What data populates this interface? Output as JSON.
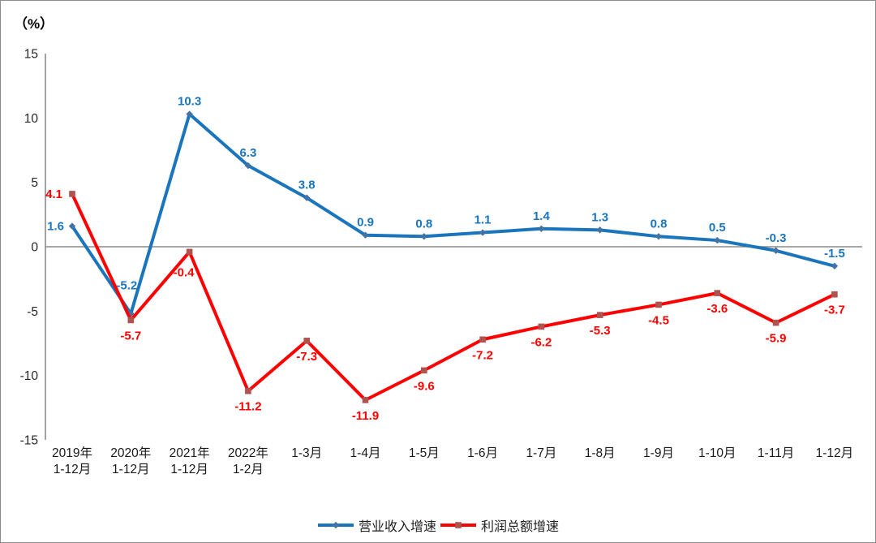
{
  "chart_data": {
    "type": "line",
    "unit_label": "（%）",
    "categories": [
      [
        "2019年",
        "1-12月"
      ],
      [
        "2020年",
        "1-12月"
      ],
      [
        "2021年",
        "1-12月"
      ],
      [
        "2022年",
        "1-2月"
      ],
      [
        "1-3月"
      ],
      [
        "1-4月"
      ],
      [
        "1-5月"
      ],
      [
        "1-6月"
      ],
      [
        "1-7月"
      ],
      [
        "1-8月"
      ],
      [
        "1-9月"
      ],
      [
        "1-10月"
      ],
      [
        "1-11月"
      ],
      [
        "1-12月"
      ]
    ],
    "y_axis": {
      "min": -15,
      "max": 15,
      "step": 5
    },
    "grid": "zero-line-only",
    "legend_position": "bottom-center",
    "axis_color": "#8c8c8c",
    "series": [
      {
        "name": "营业收入增速",
        "color": "#1b75bc",
        "marker": "diamond",
        "marker_color": "#4472a4",
        "label_position": "above",
        "values": [
          1.6,
          -5.2,
          10.3,
          6.3,
          3.8,
          0.9,
          0.8,
          1.1,
          1.4,
          1.3,
          0.8,
          0.5,
          -0.3,
          -1.5
        ]
      },
      {
        "name": "利润总额增速",
        "color": "#fe0000",
        "marker": "square",
        "marker_color": "#b0524e",
        "label_position": "below",
        "values": [
          4.1,
          -5.7,
          -0.4,
          -11.2,
          -7.3,
          -11.9,
          -9.6,
          -7.2,
          -6.2,
          -5.3,
          -4.5,
          -3.6,
          -5.9,
          -3.7
        ]
      }
    ]
  }
}
